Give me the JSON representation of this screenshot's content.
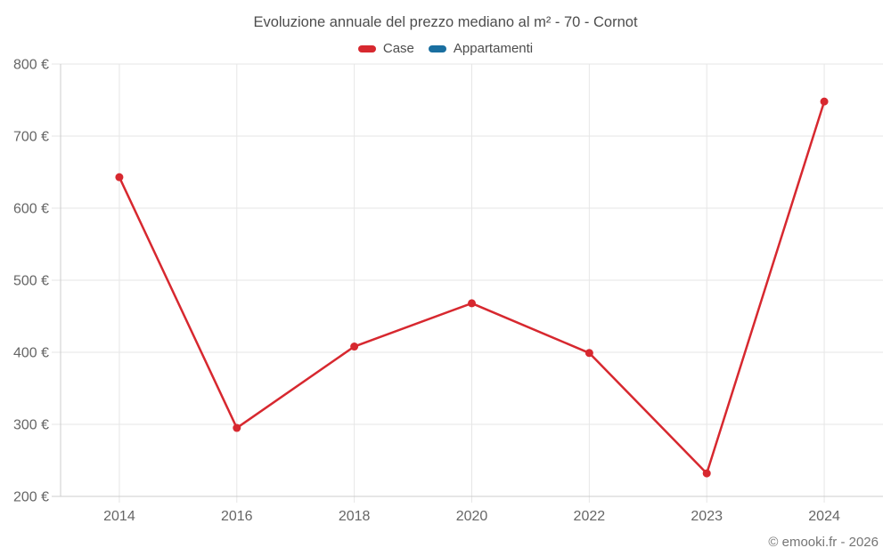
{
  "chart_data": {
    "type": "line",
    "title": "Evoluzione annuale del prezzo mediano al m² - 70 - Cornot",
    "categories": [
      "2014",
      "2016",
      "2018",
      "2020",
      "2022",
      "2023",
      "2024"
    ],
    "series": [
      {
        "name": "Case",
        "color": "#d7282f",
        "values": [
          643,
          295,
          408,
          468,
          399,
          232,
          748
        ]
      },
      {
        "name": "Appartamenti",
        "color": "#1a6fa0",
        "values": []
      }
    ],
    "ylim": [
      200,
      800
    ],
    "yticks": [
      200,
      300,
      400,
      500,
      600,
      700,
      800
    ],
    "ytick_suffix": " €",
    "grid": true,
    "legend_position": "top",
    "marker_radius": 4.5,
    "line_width": 2.5
  },
  "footer": {
    "text": "© emooki.fr - 2026"
  },
  "colors": {
    "grid": "#e6e6e6",
    "axis": "#cccccc",
    "title_text": "#4d4d4d",
    "tick_text": "#666666",
    "footer_text": "#757575",
    "background": "#ffffff"
  }
}
